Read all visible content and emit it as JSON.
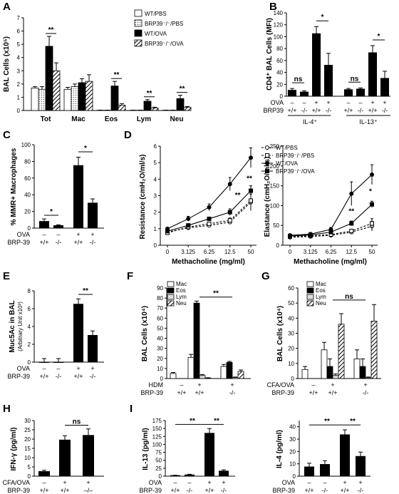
{
  "chart_data": [
    {
      "panel": "A",
      "type": "bar",
      "ylabel": "BAL Cells (x10⁵)",
      "ylim": [
        0,
        7
      ],
      "yticks": [
        0,
        1,
        2,
        3,
        4,
        5,
        6,
        7
      ],
      "categories": [
        "Tot",
        "Mac",
        "Eos",
        "Lym",
        "Neu"
      ],
      "legend": [
        "WT/PBS",
        "BRP39⁻/⁻/PBS",
        "WT/OVA",
        "BRP39⁻/⁻/OVA"
      ],
      "series": [
        {
          "name": "WT/PBS",
          "values": [
            1.7,
            1.6,
            0.02,
            0.02,
            0.02
          ],
          "err": [
            0.1,
            0.15,
            0.01,
            0.01,
            0.01
          ]
        },
        {
          "name": "BRP39⁻/⁻/PBS",
          "values": [
            1.6,
            1.8,
            0.02,
            0.02,
            0.02
          ],
          "err": [
            0.2,
            0.2,
            0.01,
            0.01,
            0.01
          ]
        },
        {
          "name": "WT/OVA",
          "values": [
            4.85,
            2.1,
            1.85,
            0.7,
            0.9
          ],
          "err": [
            0.75,
            0.3,
            0.35,
            0.12,
            0.25
          ]
        },
        {
          "name": "BRP39⁻/⁻/OVA",
          "values": [
            3.0,
            2.2,
            0.4,
            0.2,
            0.25
          ],
          "err": [
            0.6,
            0.5,
            0.12,
            0.05,
            0.05
          ]
        }
      ],
      "sig": [
        "**",
        "**",
        "**",
        "**"
      ]
    },
    {
      "panel": "B",
      "type": "bar",
      "ylabel": "CD4⁺ BAL Cells (MFI)",
      "ylim": [
        0,
        140
      ],
      "yticks": [
        0,
        20,
        40,
        60,
        80,
        100,
        120,
        140
      ],
      "values": [
        10,
        7,
        105,
        52,
        11,
        12,
        73,
        30
      ],
      "err": [
        3,
        2,
        12,
        20,
        2,
        2,
        12,
        12
      ],
      "row1_label": "OVA",
      "row1": [
        "–",
        "–",
        "+",
        "+",
        "–",
        "–",
        "+",
        "+"
      ],
      "row2_label": "BRP39",
      "row2": [
        "+/+",
        "-/-",
        "+/+",
        "-/-",
        "+/+",
        "-/-",
        "+/+",
        "-/-"
      ],
      "groups": [
        "IL-4⁺",
        "IL-13⁺"
      ],
      "sig": [
        "ns",
        "*",
        "ns",
        "*"
      ]
    },
    {
      "panel": "C",
      "type": "bar",
      "ylabel": "% MMR+ Macrophages",
      "ylim": [
        0,
        100
      ],
      "yticks": [
        0,
        20,
        40,
        60,
        80,
        100
      ],
      "values": [
        8,
        3,
        75,
        30
      ],
      "err": [
        3,
        1,
        10,
        5
      ],
      "row1_label": "OVA",
      "row1": [
        "–",
        "–",
        "+",
        "+"
      ],
      "row2_label": "BRP-39",
      "row2": [
        "+/+",
        "-/-",
        "+/+",
        "-/-"
      ],
      "sig": [
        "*",
        "*"
      ]
    },
    {
      "panel": "D1",
      "type": "line",
      "ylabel": "Resistance (cmH₂O/ml/s)",
      "xlabel": "Methacholine (mg/ml)",
      "ylim": [
        0,
        6
      ],
      "yticks": [
        0,
        1,
        2,
        3,
        4,
        5,
        6
      ],
      "x": [
        "0",
        "3.125",
        "6.25",
        "12.5",
        "50"
      ],
      "series": [
        {
          "name": "WT/PBS",
          "values": [
            0.8,
            1.05,
            1.2,
            1.4,
            2.6
          ],
          "err": [
            0.05,
            0.1,
            0.1,
            0.1,
            0.5
          ]
        },
        {
          "name": "BRP39⁻/⁻/PBS",
          "values": [
            0.75,
            1.1,
            1.3,
            1.5,
            2.7
          ],
          "err": [
            0.05,
            0.1,
            0.1,
            0.15,
            0.5
          ]
        },
        {
          "name": "WT/OVA",
          "values": [
            1.0,
            1.6,
            2.3,
            3.7,
            5.3
          ],
          "err": [
            0.05,
            0.15,
            0.2,
            0.4,
            0.6
          ]
        },
        {
          "name": "BRP39⁻/⁻/OVA",
          "values": [
            0.85,
            1.2,
            1.6,
            2.0,
            3.3
          ],
          "err": [
            0.05,
            0.1,
            0.1,
            0.2,
            0.3
          ]
        }
      ],
      "sig": [
        "**",
        "**"
      ]
    },
    {
      "panel": "D2",
      "type": "line",
      "ylabel": "Elastance (cmH₂O/ml/s)",
      "xlabel": "Methacholine (mg/ml)",
      "ylim": [
        0,
        250
      ],
      "yticks": [
        0,
        50,
        100,
        150,
        200,
        250
      ],
      "x": [
        "0",
        "3.125",
        "6.25",
        "12.5",
        "50"
      ],
      "legend": [
        "WT/PBS",
        "BRP39⁻/⁻/PBS",
        "WT/OVA",
        "BRP39⁻/⁻/OVA"
      ],
      "series": [
        {
          "name": "WT/PBS",
          "values": [
            20,
            22,
            25,
            33,
            48
          ],
          "err": [
            3,
            3,
            3,
            4,
            12
          ]
        },
        {
          "name": "BRP39⁻/⁻/PBS",
          "values": [
            22,
            24,
            27,
            36,
            55
          ],
          "err": [
            3,
            3,
            3,
            4,
            12
          ]
        },
        {
          "name": "WT/OVA",
          "values": [
            25,
            28,
            40,
            130,
            178
          ],
          "err": [
            3,
            4,
            5,
            30,
            25
          ]
        },
        {
          "name": "BRP39⁻/⁻/OVA",
          "values": [
            23,
            26,
            33,
            55,
            103
          ],
          "err": [
            3,
            3,
            4,
            6,
            8
          ]
        }
      ],
      "sig": [
        "**",
        "*"
      ]
    },
    {
      "panel": "E",
      "type": "bar",
      "ylabel": "Muc5Ac in BAL",
      "ylabel2": "(Arbitrary Unit x10³)",
      "ylim": [
        0,
        8
      ],
      "yticks": [
        0,
        2,
        4,
        6,
        8
      ],
      "values": [
        0,
        0,
        6.5,
        3.0
      ],
      "err": [
        0.4,
        0.4,
        0.6,
        0.5
      ],
      "row1_label": "OVA",
      "row1": [
        "–",
        "–",
        "+",
        "+"
      ],
      "row2_label": "BRP-39",
      "row2": [
        "+/+",
        "-/-",
        "+/+",
        "-/-"
      ],
      "sig": [
        "**"
      ]
    },
    {
      "panel": "F",
      "type": "bar",
      "ylabel": "BAL Cells (x10⁴)",
      "ylim": [
        0,
        90
      ],
      "yticks": [
        0,
        10,
        20,
        30,
        40,
        50,
        60,
        70,
        80,
        90
      ],
      "legend": [
        "Mac",
        "Eos",
        "Lym",
        "Neu"
      ],
      "groups": [
        {
          "values": [
            5,
            0,
            0,
            0
          ],
          "err": [
            1,
            0,
            0,
            0
          ]
        },
        {
          "values": [
            21,
            75,
            3,
            0.5
          ],
          "err": [
            3,
            2,
            1,
            0.3
          ]
        },
        {
          "values": [
            12,
            16,
            1,
            7
          ],
          "err": [
            2,
            1,
            0.5,
            1.5
          ]
        }
      ],
      "row1_label": "HDM",
      "row1": [
        "–",
        "+",
        "+"
      ],
      "row2_label": "BRP-39",
      "row2": [
        "+/+",
        "+/+",
        "-/-"
      ],
      "sig": [
        "**"
      ]
    },
    {
      "panel": "G",
      "type": "bar",
      "ylabel": "BAL Cells (x10⁴)",
      "ylim": [
        0,
        60
      ],
      "yticks": [
        0,
        10,
        20,
        30,
        40,
        50,
        60
      ],
      "legend": [
        "Mac",
        "Eos",
        "Lym",
        "Neu"
      ],
      "groups": [
        {
          "values": [
            6,
            0,
            0,
            0
          ],
          "err": [
            2,
            0,
            0,
            0
          ]
        },
        {
          "values": [
            19,
            8,
            2,
            36
          ],
          "err": [
            5,
            5,
            1,
            7
          ]
        },
        {
          "values": [
            13,
            8,
            0.5,
            38
          ],
          "err": [
            6,
            5,
            0.5,
            11
          ]
        }
      ],
      "row1_label": "CFA/OVA",
      "row1": [
        "–",
        "+",
        "+"
      ],
      "row2_label": "BRP-39",
      "row2": [
        "+/+",
        "+/+",
        "-/-"
      ],
      "sig": [
        "ns"
      ]
    },
    {
      "panel": "H",
      "type": "bar",
      "ylabel": "IFN-γ (pg/ml)",
      "ylim": [
        0,
        30
      ],
      "yticks": [
        0,
        5,
        10,
        15,
        20,
        25,
        30
      ],
      "values": [
        2.5,
        19.5,
        22
      ],
      "err": [
        0.7,
        2.3,
        3.5
      ],
      "row1_label": "CFA/OVA",
      "row1": [
        "–",
        "+",
        "+"
      ],
      "row2_label": "BRP-39",
      "row2": [
        "+/+",
        "+/+",
        "–/–"
      ],
      "sig": [
        "ns"
      ]
    },
    {
      "panel": "I1",
      "type": "bar",
      "ylabel": "IL-13 (pg/ml)",
      "ylim": [
        0,
        175
      ],
      "yticks": [
        0,
        25,
        50,
        75,
        100,
        125,
        150,
        175
      ],
      "values": [
        2,
        4,
        135,
        16
      ],
      "err": [
        1,
        2,
        15,
        4
      ],
      "row1_label": "OVA",
      "row1": [
        "–",
        "–",
        "+",
        "+"
      ],
      "row2_label": "BRP-39",
      "row2": [
        "+/+",
        "-/-",
        "+/+",
        "-/-"
      ],
      "sig": [
        "**",
        "**"
      ]
    },
    {
      "panel": "I2",
      "type": "bar",
      "ylabel": "IL-4 (pg/ml)",
      "ylim": [
        0,
        45
      ],
      "yticks": [
        0,
        10,
        20,
        30,
        40
      ],
      "values": [
        7.5,
        9.5,
        33.5,
        16
      ],
      "err": [
        3,
        3,
        4,
        3.5
      ],
      "row1_label": "OVA",
      "row1": [
        "–",
        "–",
        "+",
        "+"
      ],
      "row2_label": "BRP-39",
      "row2": [
        "+/+",
        "-/-",
        "+/+",
        "-/-"
      ],
      "sig": [
        "**",
        "**"
      ]
    }
  ],
  "colors": {
    "black": "#000000",
    "white": "#ffffff",
    "dotted": "#bbbbbb"
  }
}
